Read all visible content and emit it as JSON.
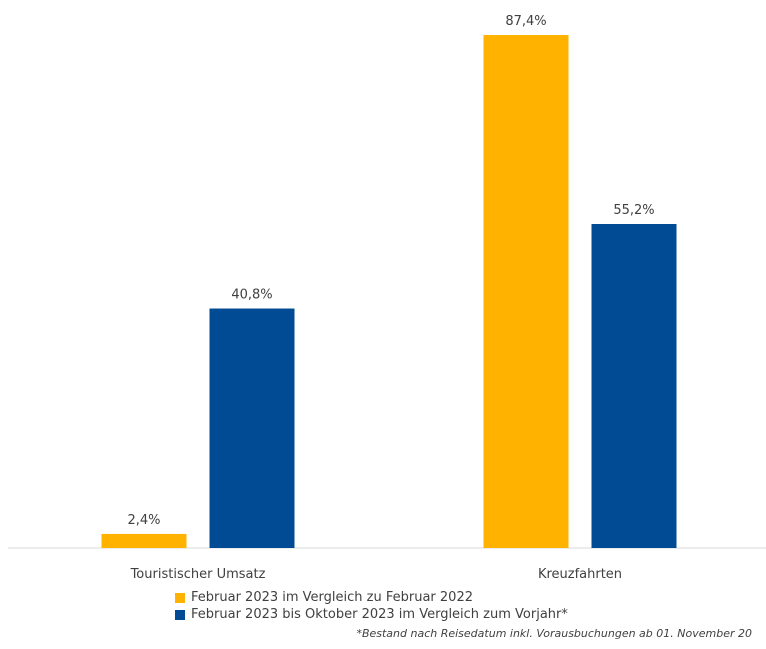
{
  "chart_data": {
    "type": "bar",
    "categories": [
      "Touristischer Umsatz",
      "Kreuzfahrten"
    ],
    "series": [
      {
        "name": "Februar 2023 im Vergleich zu Februar 2022",
        "values": [
          2.4,
          87.4
        ],
        "labels": [
          "2,4%",
          "87,4%"
        ],
        "color": "#FFB300"
      },
      {
        "name": "Februar 2023 bis Oktober 2023 im Vergleich zum Vorjahr*",
        "values": [
          40.8,
          55.2
        ],
        "labels": [
          "40,8%",
          "55,2%"
        ],
        "color": "#004B93"
      }
    ],
    "ylim": [
      0,
      100
    ],
    "grid": false,
    "legend_position": "bottom"
  },
  "footnote": "*Bestand nach Reisedatum inkl. Vorausbuchungen ab 01. November 20"
}
